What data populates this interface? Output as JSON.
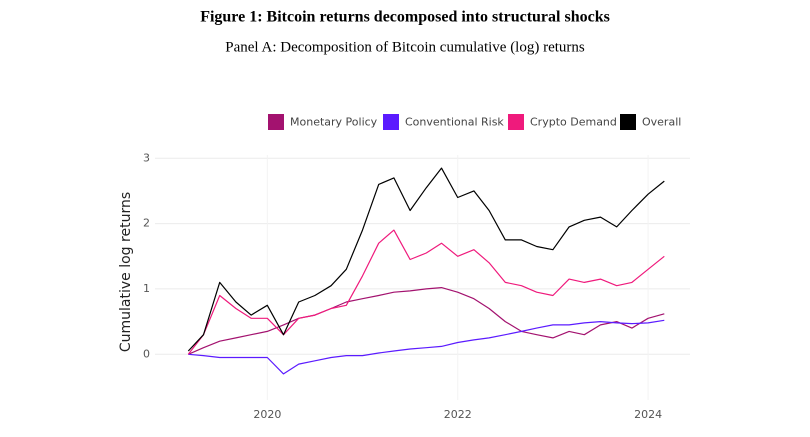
{
  "chart_data": {
    "type": "line",
    "title": "Figure 1: Bitcoin returns decomposed into structural shocks",
    "subtitle": "Panel A: Decomposition of Bitcoin cumulative (log) returns",
    "y_label": "Cumulative log returns",
    "x": [
      2019.17,
      2019.33,
      2019.5,
      2019.67,
      2019.83,
      2020.0,
      2020.17,
      2020.33,
      2020.5,
      2020.67,
      2020.83,
      2021.0,
      2021.17,
      2021.33,
      2021.5,
      2021.67,
      2021.83,
      2022.0,
      2022.17,
      2022.33,
      2022.5,
      2022.67,
      2022.83,
      2023.0,
      2023.17,
      2023.33,
      2023.5,
      2023.67,
      2023.83,
      2024.0,
      2024.17
    ],
    "series": [
      {
        "name": "Monetary Policy",
        "color": "#a3126f",
        "values": [
          0.0,
          0.1,
          0.2,
          0.25,
          0.3,
          0.35,
          0.45,
          0.55,
          0.6,
          0.7,
          0.8,
          0.85,
          0.9,
          0.95,
          0.97,
          1.0,
          1.02,
          0.95,
          0.85,
          0.7,
          0.5,
          0.35,
          0.3,
          0.25,
          0.35,
          0.3,
          0.45,
          0.5,
          0.4,
          0.55,
          0.62
        ]
      },
      {
        "name": "Conventional Risk",
        "color": "#5b1bff",
        "values": [
          0.0,
          -0.02,
          -0.05,
          -0.05,
          -0.05,
          -0.05,
          -0.3,
          -0.15,
          -0.1,
          -0.05,
          -0.02,
          -0.02,
          0.02,
          0.05,
          0.08,
          0.1,
          0.12,
          0.18,
          0.22,
          0.25,
          0.3,
          0.35,
          0.4,
          0.45,
          0.45,
          0.48,
          0.5,
          0.48,
          0.47,
          0.48,
          0.52
        ]
      },
      {
        "name": "Crypto Demand",
        "color": "#ef1a7c",
        "values": [
          0.0,
          0.3,
          0.9,
          0.7,
          0.55,
          0.55,
          0.3,
          0.55,
          0.6,
          0.7,
          0.75,
          1.2,
          1.7,
          1.9,
          1.45,
          1.55,
          1.7,
          1.5,
          1.6,
          1.4,
          1.1,
          1.05,
          0.95,
          0.9,
          1.15,
          1.1,
          1.15,
          1.05,
          1.1,
          1.3,
          1.5
        ]
      },
      {
        "name": "Overall",
        "color": "#000000",
        "values": [
          0.05,
          0.3,
          1.1,
          0.8,
          0.6,
          0.75,
          0.3,
          0.8,
          0.9,
          1.05,
          1.3,
          1.9,
          2.6,
          2.7,
          2.2,
          2.55,
          2.85,
          2.4,
          2.5,
          2.2,
          1.75,
          1.75,
          1.65,
          1.6,
          1.95,
          2.05,
          2.1,
          1.95,
          2.2,
          2.45,
          2.65
        ]
      }
    ],
    "xlim": [
      2018.82,
      2024.44
    ],
    "xticks": [
      2020,
      2022,
      2024
    ],
    "ylim": [
      -0.7,
      3.05
    ],
    "yticks": [
      0,
      1,
      2,
      3
    ],
    "grid": true,
    "legend": "top"
  }
}
